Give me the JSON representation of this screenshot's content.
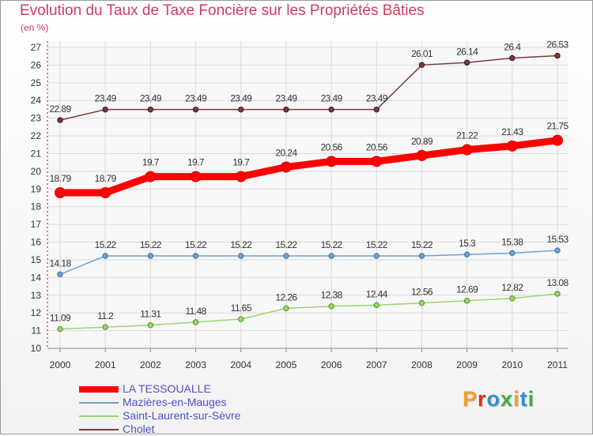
{
  "chart_data": {
    "type": "line",
    "title": "Evolution du Taux de Taxe Foncière sur les Propriétés Bâties",
    "ylabel": "(en %)",
    "xlabel": "",
    "ylim": [
      10,
      27
    ],
    "yticks": [
      10,
      11,
      12,
      13,
      14,
      15,
      16,
      17,
      18,
      19,
      20,
      21,
      22,
      23,
      24,
      25,
      26,
      27
    ],
    "categories": [
      "2000",
      "2001",
      "2002",
      "2003",
      "2004",
      "2005",
      "2006",
      "2007",
      "2008",
      "2009",
      "2010",
      "2011"
    ],
    "series": [
      {
        "name": "LA TESSOUALLE",
        "color": "#ff0000",
        "values": [
          18.79,
          18.79,
          19.7,
          19.7,
          19.7,
          20.24,
          20.56,
          20.56,
          20.89,
          21.22,
          21.43,
          21.75
        ],
        "labels": [
          "18.79",
          "18.79",
          "19.7",
          "19.7",
          "19.7",
          "20.24",
          "20.56",
          "20.56",
          "20.89",
          "21.22",
          "21.43",
          "21.75"
        ]
      },
      {
        "name": "Mazières-en-Mauges",
        "color": "#6ea0d2",
        "values": [
          14.18,
          15.22,
          15.22,
          15.22,
          15.22,
          15.22,
          15.22,
          15.22,
          15.22,
          15.3,
          15.38,
          15.53
        ],
        "labels": [
          "14.18",
          "15.22",
          "15.22",
          "15.22",
          "15.22",
          "15.22",
          "15.22",
          "15.22",
          "15.22",
          "15.3",
          "15.38",
          "15.53"
        ]
      },
      {
        "name": "Saint-Laurent-sur-Sèvre",
        "color": "#9ad470",
        "values": [
          11.09,
          11.2,
          11.31,
          11.48,
          11.65,
          12.26,
          12.38,
          12.44,
          12.56,
          12.69,
          12.82,
          13.08
        ],
        "labels": [
          "11.09",
          "11.2",
          "11.31",
          "11.48",
          "11.65",
          "12.26",
          "12.38",
          "12.44",
          "12.56",
          "12.69",
          "12.82",
          "13.08"
        ]
      },
      {
        "name": "Cholet",
        "color": "#7a3a3e",
        "values": [
          22.89,
          23.49,
          23.49,
          23.49,
          23.49,
          23.49,
          23.49,
          23.49,
          26.01,
          26.14,
          26.4,
          26.53
        ],
        "labels": [
          "22.89",
          "23.49",
          "23.49",
          "23.49",
          "23.49",
          "23.49",
          "23.49",
          "23.49",
          "26.01",
          "26.14",
          "26.4",
          "26.53"
        ]
      }
    ],
    "legend_position": "bottom-left",
    "grid": true
  },
  "branding": {
    "logo_text": "Proxiti",
    "logo_colors": [
      "#f0a030",
      "#e03020",
      "#3090d0",
      "#40b040",
      "#f0a030",
      "#3090d0",
      "#40b040"
    ]
  }
}
